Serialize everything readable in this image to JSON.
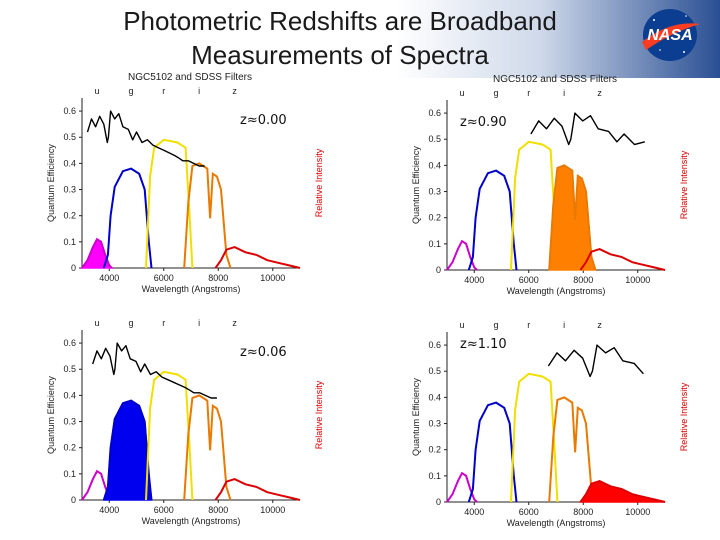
{
  "slide": {
    "title": "Photometric Redshifts are Broadband\nMeasurements of Spectra",
    "logo_text": "NASA"
  },
  "panels": [
    {
      "title": "NGC5102 and SDSS Filters",
      "redshift_label": "z≈0.00",
      "filled_band": "u",
      "fill_color": "#ff00ff"
    },
    {
      "title": "NGC5102 and SDSS Filters",
      "redshift_label": "z≈0.90",
      "filled_band": "i",
      "fill_color": "#ff8000"
    },
    {
      "title": "",
      "redshift_label": "z≈0.06",
      "filled_band": "g",
      "fill_color": "#0000ee"
    },
    {
      "title": "",
      "redshift_label": "z≈1.10",
      "filled_band": "z",
      "fill_color": "#ff0000"
    }
  ],
  "axes": {
    "xlabel": "Wavelength (Angstroms)",
    "ylabel_left": "Quantum Efficiency",
    "ylabel_right": "Relative Intensity",
    "x_ticks": [
      "4000",
      "6000",
      "8000",
      "10000"
    ],
    "y_ticks": [
      "0",
      "0.1",
      "0.2",
      "0.3",
      "0.4",
      "0.5",
      "0.6"
    ],
    "band_labels": [
      "u",
      "g",
      "r",
      "i",
      "z"
    ]
  },
  "colors": {
    "u": "#cc00cc",
    "g": "#0000cc",
    "r": "#f0e000",
    "i": "#e87a00",
    "z": "#dd0000",
    "spectrum": "#000000",
    "banner_dark": "#2a4f93"
  },
  "chart_data": {
    "type": "line",
    "title": "NGC5102 and SDSS Filters",
    "xlabel": "Wavelength (Angstroms)",
    "ylabel": "Quantum Efficiency",
    "xlim": [
      3000,
      11000
    ],
    "ylim": [
      0,
      0.65
    ],
    "filters": [
      {
        "name": "u",
        "x": [
          3000,
          3200,
          3400,
          3550,
          3700,
          3850,
          4000,
          4100
        ],
        "y": [
          0.0,
          0.03,
          0.08,
          0.11,
          0.1,
          0.05,
          0.01,
          0.0
        ]
      },
      {
        "name": "g",
        "x": [
          3800,
          3950,
          4050,
          4200,
          4500,
          4800,
          5100,
          5300,
          5450,
          5550
        ],
        "y": [
          0.0,
          0.05,
          0.2,
          0.31,
          0.37,
          0.38,
          0.36,
          0.3,
          0.1,
          0.0
        ]
      },
      {
        "name": "r",
        "x": [
          5350,
          5500,
          5650,
          6000,
          6500,
          6800,
          6950,
          7050
        ],
        "y": [
          0.0,
          0.35,
          0.46,
          0.49,
          0.48,
          0.46,
          0.2,
          0.0
        ]
      },
      {
        "name": "i",
        "x": [
          6750,
          6900,
          7050,
          7300,
          7600,
          7700,
          7800,
          7950,
          8100,
          8300,
          8450
        ],
        "y": [
          0.0,
          0.25,
          0.39,
          0.4,
          0.38,
          0.19,
          0.36,
          0.35,
          0.3,
          0.05,
          0.0
        ]
      },
      {
        "name": "z",
        "x": [
          7900,
          8100,
          8300,
          8600,
          9000,
          9400,
          9800,
          10200,
          10600,
          11000
        ],
        "y": [
          0.0,
          0.03,
          0.07,
          0.08,
          0.06,
          0.05,
          0.03,
          0.02,
          0.01,
          0.0
        ]
      }
    ],
    "spectrum": {
      "rest_x": [
        3200,
        3350,
        3500,
        3650,
        3800,
        3930,
        3970,
        4050,
        4200,
        4350,
        4500,
        4700,
        4861,
        5000,
        5200,
        5400,
        5600,
        5800,
        6000,
        6200,
        6400,
        6563,
        6700,
        6900,
        7100,
        7300,
        7500
      ],
      "rest_y": [
        0.52,
        0.57,
        0.54,
        0.58,
        0.55,
        0.48,
        0.5,
        0.6,
        0.57,
        0.59,
        0.54,
        0.53,
        0.49,
        0.52,
        0.48,
        0.49,
        0.47,
        0.46,
        0.45,
        0.44,
        0.43,
        0.42,
        0.41,
        0.41,
        0.4,
        0.39,
        0.39
      ]
    },
    "panel_redshifts": [
      0.0,
      0.9,
      0.06,
      1.1
    ]
  }
}
